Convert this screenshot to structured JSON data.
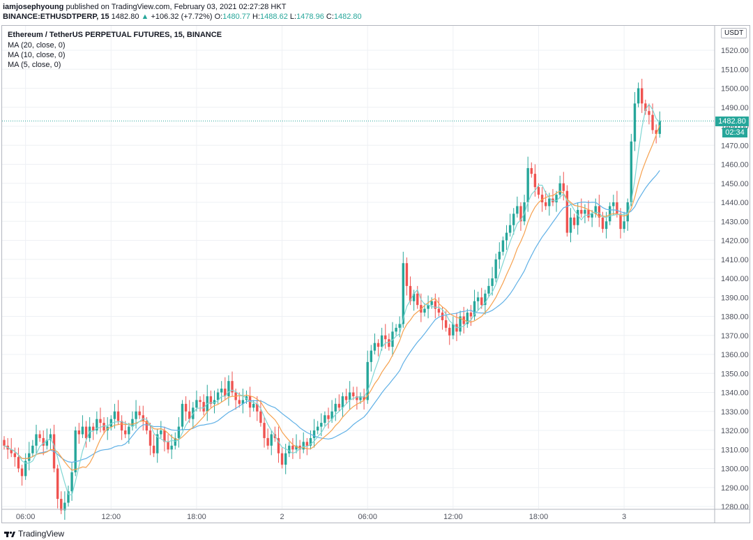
{
  "header": {
    "author": "iamjosephyoung",
    "published": "published on TradingView.com, February 03, 2021 02:27:28 HKT"
  },
  "ohlc": {
    "symbol": "BINANCE:ETHUSDTPERP, 15",
    "last": "1482.80",
    "change": "+106.32 (+7.72%)",
    "o_label": "O:",
    "o": "1480.77",
    "h_label": "H:",
    "h": "1488.62",
    "l_label": "L:",
    "l": "1478.96",
    "c_label": "C:",
    "c": "1482.80"
  },
  "legend": {
    "title": "Ethereum / TetherUS PERPETUAL FUTURES, 15, BINANCE",
    "ma1": "MA (20, close, 0)",
    "ma2": "MA (10, close, 0)",
    "ma3": "MA (5, close, 0)"
  },
  "price_axis": {
    "unit": "USDT",
    "last_price_label": "1482.80",
    "countdown": "02:34"
  },
  "footer": {
    "brand": "TradingView"
  },
  "colors": {
    "up": "#26a69a",
    "down": "#ef5350",
    "ma20": "#5fb0e6",
    "ma10": "#f6a04d",
    "ma5": "#7fd6d3",
    "grid": "#eef0f4",
    "axis_text": "#50535e"
  },
  "chart_data": {
    "type": "candlestick",
    "title": "Ethereum / TetherUS PERPETUAL FUTURES, 15, BINANCE",
    "ylim": [
      1280,
      1530
    ],
    "yticks": [
      1280,
      1290,
      1300,
      1310,
      1320,
      1330,
      1340,
      1350,
      1360,
      1370,
      1380,
      1390,
      1400,
      1410,
      1420,
      1430,
      1440,
      1450,
      1460,
      1470,
      1480,
      1490,
      1500,
      1510,
      1520
    ],
    "xticks": [
      {
        "label": "06:00",
        "bar": 6
      },
      {
        "label": "12:00",
        "bar": 30
      },
      {
        "label": "18:00",
        "bar": 54
      },
      {
        "label": "2",
        "bar": 78
      },
      {
        "label": "06:00",
        "bar": 102
      },
      {
        "label": "12:00",
        "bar": 126
      },
      {
        "label": "18:00",
        "bar": 150
      },
      {
        "label": "3",
        "bar": 174
      }
    ],
    "grid": true,
    "last_price": 1482.8,
    "closes": [
      1312,
      1310,
      1308,
      1306,
      1300,
      1296,
      1304,
      1308,
      1312,
      1318,
      1316,
      1312,
      1315,
      1318,
      1300,
      1284,
      1278,
      1282,
      1288,
      1298,
      1320,
      1318,
      1322,
      1316,
      1322,
      1320,
      1326,
      1324,
      1320,
      1322,
      1326,
      1330,
      1325,
      1320,
      1318,
      1322,
      1326,
      1330,
      1328,
      1325,
      1320,
      1312,
      1308,
      1318,
      1320,
      1314,
      1310,
      1312,
      1316,
      1322,
      1334,
      1330,
      1326,
      1332,
      1336,
      1335,
      1330,
      1338,
      1334,
      1336,
      1340,
      1342,
      1338,
      1346,
      1340,
      1336,
      1334,
      1336,
      1338,
      1332,
      1334,
      1330,
      1324,
      1316,
      1312,
      1318,
      1316,
      1308,
      1302,
      1308,
      1312,
      1310,
      1312,
      1310,
      1314,
      1312,
      1316,
      1320,
      1322,
      1324,
      1328,
      1326,
      1330,
      1334,
      1332,
      1338,
      1336,
      1340,
      1338,
      1336,
      1338,
      1336,
      1356,
      1362,
      1366,
      1364,
      1370,
      1368,
      1364,
      1372,
      1374,
      1376,
      1408,
      1396,
      1388,
      1392,
      1386,
      1382,
      1384,
      1386,
      1388,
      1384,
      1382,
      1378,
      1374,
      1370,
      1376,
      1372,
      1380,
      1376,
      1382,
      1380,
      1388,
      1390,
      1386,
      1392,
      1396,
      1400,
      1410,
      1414,
      1420,
      1424,
      1428,
      1434,
      1438,
      1430,
      1440,
      1458,
      1455,
      1448,
      1444,
      1440,
      1438,
      1442,
      1440,
      1444,
      1450,
      1446,
      1424,
      1432,
      1428,
      1436,
      1434,
      1436,
      1432,
      1434,
      1438,
      1432,
      1426,
      1430,
      1438,
      1440,
      1434,
      1426,
      1430,
      1440,
      1472,
      1492,
      1500,
      1492,
      1488,
      1486,
      1478,
      1476,
      1482.8
    ],
    "series": [
      {
        "name": "MA (20, close, 0)",
        "color": "#5fb0e6"
      },
      {
        "name": "MA (10, close, 0)",
        "color": "#f6a04d"
      },
      {
        "name": "MA (5, close, 0)",
        "color": "#7fd6d3"
      }
    ]
  }
}
